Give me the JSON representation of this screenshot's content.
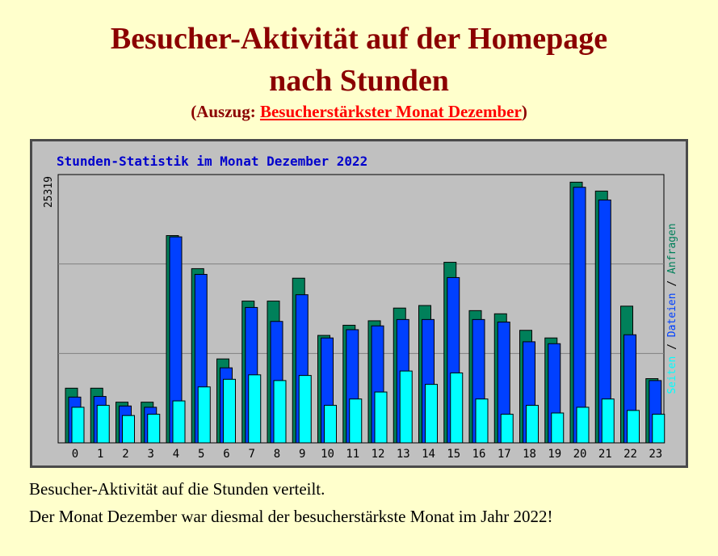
{
  "header": {
    "title_line1": "Besucher-Aktivität auf der Homepage",
    "title_line2": "nach Stunden",
    "subtitle_prefix": "(Auszug: ",
    "subtitle_link": "Besucherstärkster Monat Dezember",
    "subtitle_suffix": ")"
  },
  "colors": {
    "title": "#8b0000",
    "link": "#ff0000",
    "seiten": "#00ffff",
    "dateien": "#0040ff",
    "anfragen": "#00805a",
    "chart_title": "#0000cc"
  },
  "chart_data": {
    "type": "bar",
    "title": "Stunden-Statistik im Monat Dezember 2022",
    "ymax_label": "25319",
    "ylim": [
      0,
      25319
    ],
    "grid": true,
    "legend": {
      "placement": "right-vertical",
      "items": [
        "Seiten",
        "Dateien",
        "Anfragen"
      ],
      "separator": " / "
    },
    "categories": [
      "0",
      "1",
      "2",
      "3",
      "4",
      "5",
      "6",
      "7",
      "8",
      "9",
      "10",
      "11",
      "12",
      "13",
      "14",
      "15",
      "16",
      "17",
      "18",
      "19",
      "20",
      "21",
      "22",
      "23"
    ],
    "series": [
      {
        "name": "Anfragen",
        "color": "#00805a",
        "values": [
          5160,
          5160,
          3840,
          3840,
          19560,
          16440,
          7920,
          13380,
          13380,
          15540,
          10140,
          11100,
          11520,
          12720,
          12960,
          17040,
          12480,
          12180,
          10620,
          9900,
          24600,
          23760,
          12900,
          6060
        ]
      },
      {
        "name": "Dateien",
        "color": "#0040ff",
        "values": [
          4320,
          4380,
          3480,
          3360,
          19440,
          15900,
          7080,
          12780,
          11460,
          13980,
          9900,
          10680,
          11040,
          11640,
          11640,
          15600,
          11640,
          11400,
          9540,
          9360,
          24120,
          22920,
          10200,
          5880
        ]
      },
      {
        "name": "Seiten",
        "color": "#00ffff",
        "values": [
          3360,
          3540,
          2580,
          2700,
          3960,
          5280,
          6000,
          6420,
          5880,
          6360,
          3540,
          4140,
          4800,
          6780,
          5520,
          6600,
          4140,
          2700,
          3540,
          2820,
          3360,
          4140,
          3060,
          2700
        ]
      }
    ]
  },
  "footer": {
    "line1": "Besucher-Aktivität  auf die Stunden verteilt.",
    "line2": "Der Monat Dezember war diesmal der besucherstärkste Monat im Jahr 2022!"
  }
}
